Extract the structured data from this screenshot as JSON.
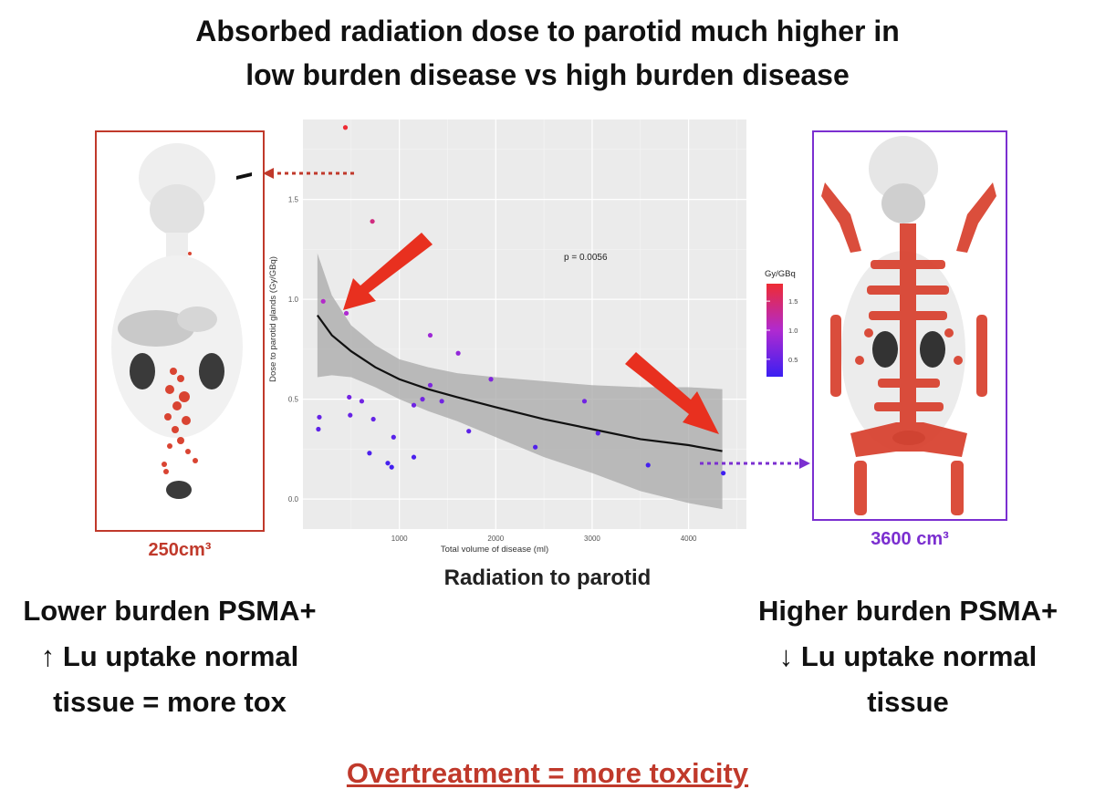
{
  "slide": {
    "title_line1": "Absorbed radiation dose to parotid much higher in",
    "title_line2": "low burden disease vs high burden disease",
    "left_volume": "250cm³",
    "right_volume": "3600 cm³",
    "chart_caption": "Radiation to parotid",
    "left_text": "Lower burden PSMA+\n↑ Lu uptake normal\ntissue = more tox",
    "right_text": "Higher burden PSMA+\n↓ Lu uptake normal\ntissue",
    "footer": "Overtreatment = more toxicity"
  },
  "colors": {
    "left_accent": "#c0392b",
    "right_accent": "#7b2fd0",
    "arrow": "#e8301f",
    "panel_bg": "#ebebeb"
  },
  "chart_data": {
    "type": "scatter",
    "title": "",
    "xlabel": "Total volume of disease (ml)",
    "ylabel": "Dose to parotid glands (Gy/GBq)",
    "xlim": [
      0,
      4600
    ],
    "ylim": [
      -0.15,
      1.9
    ],
    "x_ticks": [
      1000,
      2000,
      3000,
      4000
    ],
    "y_ticks": [
      0.0,
      0.5,
      1.0,
      1.5
    ],
    "x_tick_labels": [
      "1000",
      "2000",
      "3000",
      "4000"
    ],
    "y_tick_labels": [
      "0.0",
      "0.5",
      "1.0",
      "1.5"
    ],
    "annotation": "p = 0.0056",
    "legend_title": "Gy/GBq",
    "legend_ticks": [
      0.5,
      1.0,
      1.5
    ],
    "legend_tick_labels": [
      "0.5",
      "1.0",
      "1.5"
    ],
    "legend_placement": "right",
    "color_scale": {
      "low": "#3b1ff2",
      "mid": "#b02ad0",
      "high": "#ee2b33"
    },
    "grid": true,
    "points": [
      {
        "x": 440,
        "y": 1.86
      },
      {
        "x": 720,
        "y": 1.39
      },
      {
        "x": 210,
        "y": 0.99
      },
      {
        "x": 450,
        "y": 0.93
      },
      {
        "x": 1320,
        "y": 0.82
      },
      {
        "x": 1610,
        "y": 0.73
      },
      {
        "x": 1950,
        "y": 0.6
      },
      {
        "x": 1320,
        "y": 0.57
      },
      {
        "x": 480,
        "y": 0.51
      },
      {
        "x": 1440,
        "y": 0.49
      },
      {
        "x": 2920,
        "y": 0.49
      },
      {
        "x": 1240,
        "y": 0.5
      },
      {
        "x": 1150,
        "y": 0.47
      },
      {
        "x": 610,
        "y": 0.49
      },
      {
        "x": 170,
        "y": 0.41
      },
      {
        "x": 490,
        "y": 0.42
      },
      {
        "x": 160,
        "y": 0.35
      },
      {
        "x": 730,
        "y": 0.4
      },
      {
        "x": 1720,
        "y": 0.34
      },
      {
        "x": 3060,
        "y": 0.33
      },
      {
        "x": 940,
        "y": 0.31
      },
      {
        "x": 2410,
        "y": 0.26
      },
      {
        "x": 690,
        "y": 0.23
      },
      {
        "x": 1150,
        "y": 0.21
      },
      {
        "x": 880,
        "y": 0.18
      },
      {
        "x": 920,
        "y": 0.16
      },
      {
        "x": 3580,
        "y": 0.17
      },
      {
        "x": 4360,
        "y": 0.13
      }
    ],
    "fit_line": [
      [
        150,
        0.92
      ],
      [
        300,
        0.82
      ],
      [
        500,
        0.74
      ],
      [
        750,
        0.66
      ],
      [
        1000,
        0.6
      ],
      [
        1300,
        0.55
      ],
      [
        1600,
        0.51
      ],
      [
        2000,
        0.46
      ],
      [
        2500,
        0.4
      ],
      [
        3000,
        0.35
      ],
      [
        3500,
        0.3
      ],
      [
        4000,
        0.27
      ],
      [
        4350,
        0.24
      ]
    ],
    "ci_upper": [
      [
        150,
        1.23
      ],
      [
        300,
        1.02
      ],
      [
        500,
        0.87
      ],
      [
        750,
        0.77
      ],
      [
        1000,
        0.7
      ],
      [
        1300,
        0.66
      ],
      [
        1600,
        0.63
      ],
      [
        2000,
        0.61
      ],
      [
        2500,
        0.59
      ],
      [
        3000,
        0.57
      ],
      [
        3500,
        0.56
      ],
      [
        4000,
        0.56
      ],
      [
        4350,
        0.55
      ]
    ],
    "ci_lower": [
      [
        150,
        0.61
      ],
      [
        300,
        0.62
      ],
      [
        500,
        0.61
      ],
      [
        750,
        0.56
      ],
      [
        1000,
        0.5
      ],
      [
        1300,
        0.44
      ],
      [
        1600,
        0.39
      ],
      [
        2000,
        0.31
      ],
      [
        2500,
        0.21
      ],
      [
        3000,
        0.13
      ],
      [
        3500,
        0.04
      ],
      [
        4000,
        -0.02
      ],
      [
        4350,
        -0.05
      ]
    ]
  }
}
